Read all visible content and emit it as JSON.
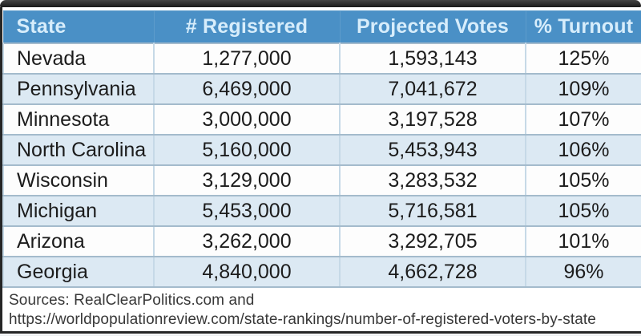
{
  "chart_data": {
    "type": "table",
    "columns": [
      "State",
      "# Registered",
      "Projected Votes",
      "% Turnout"
    ],
    "rows": [
      {
        "state": "Nevada",
        "registered": 1277000,
        "projected_votes": 1593143,
        "turnout_pct": 125
      },
      {
        "state": "Pennsylvania",
        "registered": 6469000,
        "projected_votes": 7041672,
        "turnout_pct": 109
      },
      {
        "state": "Minnesota",
        "registered": 3000000,
        "projected_votes": 3197528,
        "turnout_pct": 107
      },
      {
        "state": "North Carolina",
        "registered": 5160000,
        "projected_votes": 5453943,
        "turnout_pct": 106
      },
      {
        "state": "Wisconsin",
        "registered": 3129000,
        "projected_votes": 3283532,
        "turnout_pct": 105
      },
      {
        "state": "Michigan",
        "registered": 5453000,
        "projected_votes": 5716581,
        "turnout_pct": 105
      },
      {
        "state": "Arizona",
        "registered": 3262000,
        "projected_votes": 3292705,
        "turnout_pct": 101
      },
      {
        "state": "Georgia",
        "registered": 4840000,
        "projected_votes": 4662728,
        "turnout_pct": 96
      }
    ]
  },
  "table": {
    "headers": [
      "State",
      "# Registered",
      "Projected Votes",
      "% Turnout"
    ],
    "rows": [
      [
        "Nevada",
        "1,277,000",
        "1,593,143",
        "125%"
      ],
      [
        "Pennsylvania",
        "6,469,000",
        "7,041,672",
        "109%"
      ],
      [
        "Minnesota",
        "3,000,000",
        "3,197,528",
        "107%"
      ],
      [
        "North Carolina",
        "5,160,000",
        "5,453,943",
        "106%"
      ],
      [
        "Wisconsin",
        "3,129,000",
        "3,283,532",
        "105%"
      ],
      [
        "Michigan",
        "5,453,000",
        "5,716,581",
        "105%"
      ],
      [
        "Arizona",
        "3,262,000",
        "3,292,705",
        "101%"
      ],
      [
        "Georgia",
        "4,840,000",
        "4,662,728",
        "96%"
      ]
    ]
  },
  "sources": {
    "line1": "Sources: RealClearPolitics.com and",
    "line2": "https://worldpopulationreview.com/state-rankings/number-of-registered-voters-by-state"
  },
  "colors": {
    "header_bg": "#4a90c6",
    "header_text": "#d7edfb",
    "row_bg": "#fdfdfd",
    "row_alt_bg": "#dce9f3",
    "cell_border": "#c6d9e7",
    "row_border": "#a4bbcc",
    "frame": "#262626",
    "body_text": "#1c1c1c",
    "sources_text": "#383838"
  }
}
